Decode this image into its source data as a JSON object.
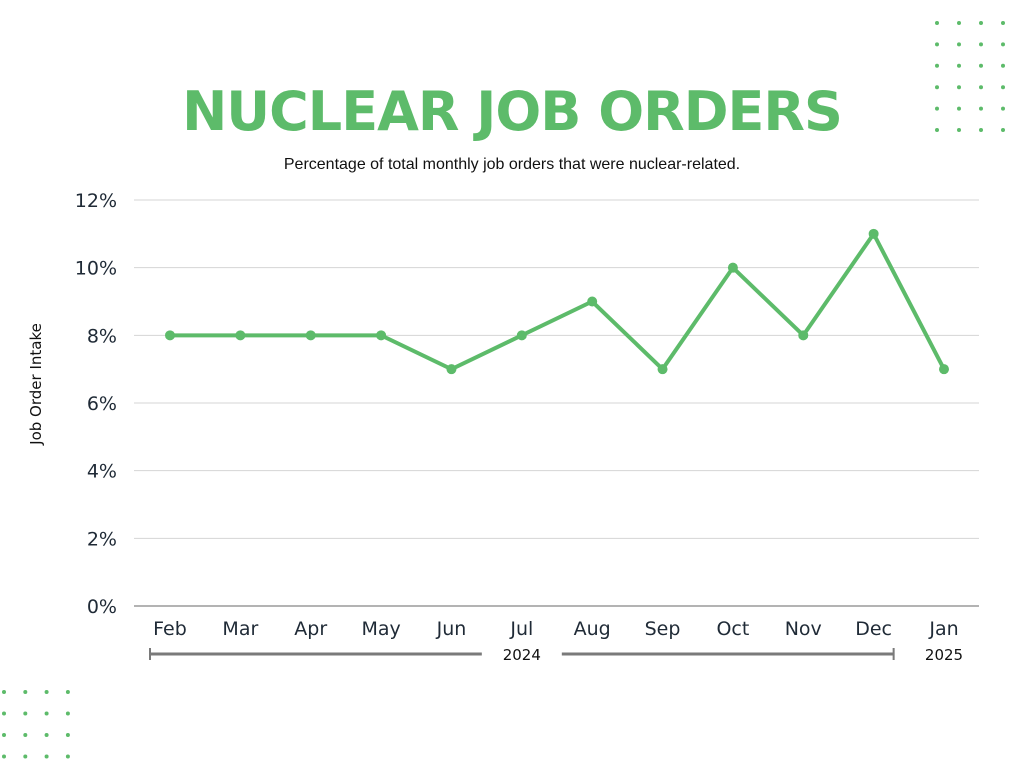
{
  "header": {
    "title": "NUCLEAR JOB ORDERS",
    "subtitle": "Percentage of total monthly job orders that were nuclear-related."
  },
  "colors": {
    "accent": "#5dbb6a",
    "text": "#1f2a36",
    "grid": "#d4d4d4",
    "axis": "#9a9a9a",
    "bracket": "#7a7a7a"
  },
  "chart_data": {
    "type": "line",
    "title": "NUCLEAR JOB ORDERS",
    "subtitle": "Percentage of total monthly job orders that were nuclear-related.",
    "xlabel": "",
    "ylabel": "Job Order Intake",
    "categories": [
      "Feb",
      "Mar",
      "Apr",
      "May",
      "Jun",
      "Jul",
      "Aug",
      "Sep",
      "Oct",
      "Nov",
      "Dec",
      "Jan"
    ],
    "series": [
      {
        "values": [
          8,
          8,
          8,
          8,
          7,
          8,
          9,
          7,
          10,
          8,
          11,
          7
        ]
      }
    ],
    "ylim": [
      0,
      12
    ],
    "yticks": [
      0,
      2,
      4,
      6,
      8,
      10,
      12
    ],
    "ytick_labels": [
      "0%",
      "2%",
      "4%",
      "6%",
      "8%",
      "10%",
      "12%"
    ],
    "grid": true,
    "legend": "none",
    "year_groups": [
      {
        "label": "2024",
        "from": "Feb",
        "to": "Dec"
      },
      {
        "label": "2025",
        "from": "Jan",
        "to": "Jan"
      }
    ]
  }
}
